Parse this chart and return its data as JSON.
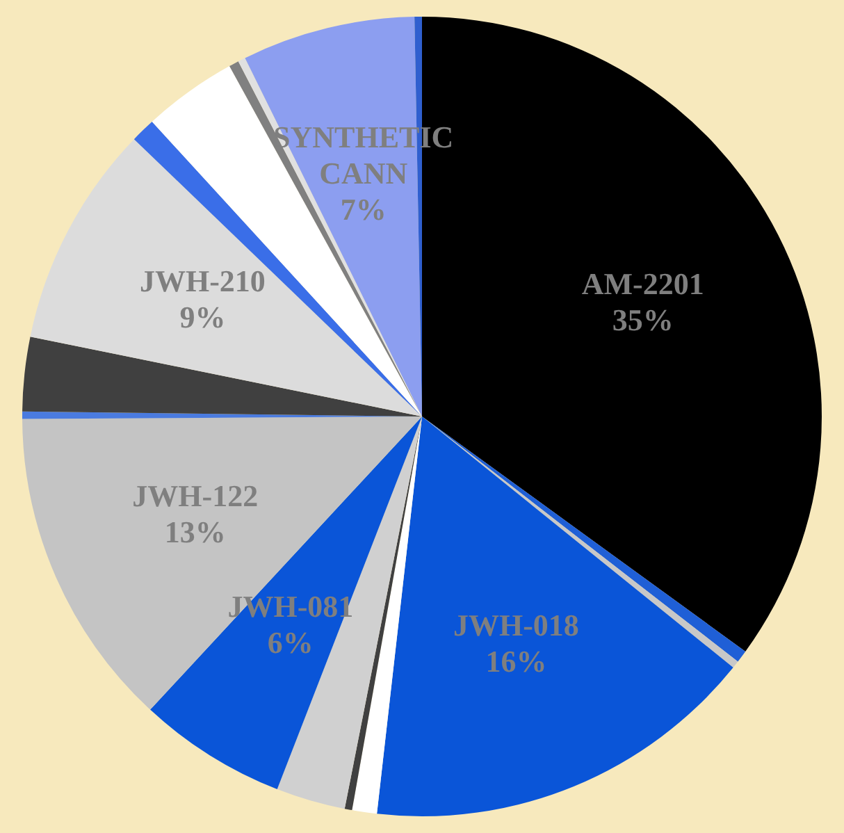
{
  "chart_data": {
    "type": "pie",
    "categories": [
      "AM-2201",
      null,
      null,
      "JWH-018",
      null,
      null,
      null,
      "JWH-081",
      "JWH-122",
      null,
      null,
      "JWH-210",
      null,
      null,
      null,
      null,
      "SYNTHETIC CANN",
      null
    ],
    "values": [
      35,
      0.5,
      0.3,
      16,
      1,
      0.3,
      2.8,
      6,
      13,
      0.3,
      3,
      9,
      1,
      3.8,
      0.4,
      0.3,
      7,
      0.3
    ],
    "value_labels": [
      "35%",
      null,
      null,
      "16%",
      null,
      null,
      null,
      "6%",
      "13%",
      null,
      null,
      "9%",
      null,
      null,
      null,
      null,
      "7%",
      null
    ],
    "colors": [
      "#000000",
      "#1f5fd6",
      "#c8c8c8",
      "#0a55d8",
      "#ffffff",
      "#404040",
      "#d0d0d0",
      "#0a55d8",
      "#c4c4c4",
      "#4a7be0",
      "#404040",
      "#dcdcdc",
      "#3a6ee8",
      "#ffffff",
      "#808080",
      "#e0e0e0",
      "#8c9ef0",
      "#2f5fcf"
    ],
    "legend": false
  }
}
